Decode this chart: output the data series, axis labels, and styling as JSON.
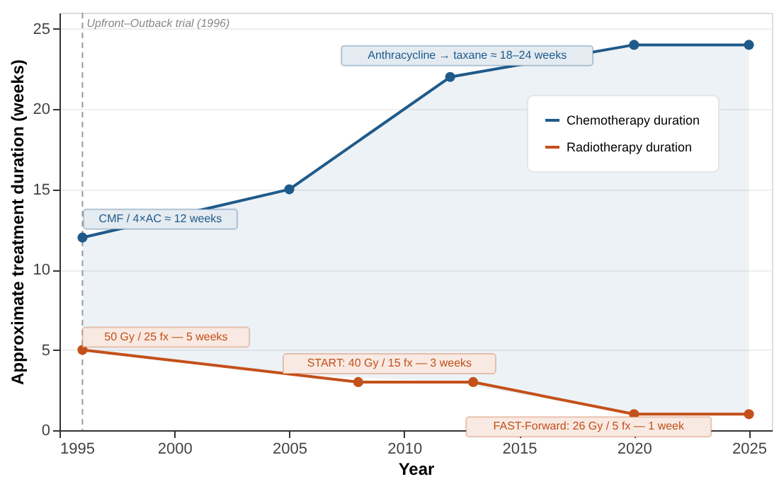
{
  "chart_data": {
    "type": "line",
    "xlabel": "Year",
    "ylabel": "Approximate treatment duration (weeks)",
    "xlim": [
      1995,
      2026
    ],
    "ylim": [
      0,
      26
    ],
    "xticks": [
      1995,
      2000,
      2005,
      2010,
      2015,
      2020,
      2025
    ],
    "yticks": [
      0,
      5,
      10,
      15,
      20,
      25
    ],
    "grid": "y",
    "legend": "top right",
    "marker": "circle",
    "line_style": "solid",
    "series": [
      {
        "name": "Chemotherapy duration",
        "color": "#1f5a8a",
        "x": [
          1996,
          2005,
          2012,
          2020,
          2025
        ],
        "values": [
          12,
          15,
          22,
          24,
          24
        ],
        "lower": [
          5,
          3.5,
          3,
          1,
          1
        ],
        "upper": [
          12,
          15,
          22,
          24,
          24
        ]
      },
      {
        "name": "Radiotherapy duration",
        "color": "#c4501a",
        "x": [
          1996,
          2008,
          2013,
          2020,
          2025
        ],
        "values": [
          5,
          3,
          3,
          1,
          1
        ]
      }
    ],
    "ref_lines": [
      {
        "axis": "x",
        "value": 1996,
        "label": "Upfront–Outback trial (1996)",
        "color": "#999999",
        "line_style": "dashed"
      }
    ],
    "annotations": [
      {
        "text": "CMF / 4×AC ≈ 12 weeks",
        "x": 1996,
        "y": 12
      },
      {
        "text": "Anthracycline → taxane ≈ 18–24 weeks",
        "x": 2012,
        "y": 22
      },
      {
        "text": "50 Gy / 25 fx — 5 weeks",
        "x": 1996,
        "y": 5
      },
      {
        "text": "START: 40 Gy / 15 fx — 3 weeks",
        "x": 2008,
        "y": 3
      },
      {
        "text": "FAST-Forward: 26 Gy / 5 fx — 1 week",
        "x": 2020,
        "y": 1
      }
    ]
  }
}
